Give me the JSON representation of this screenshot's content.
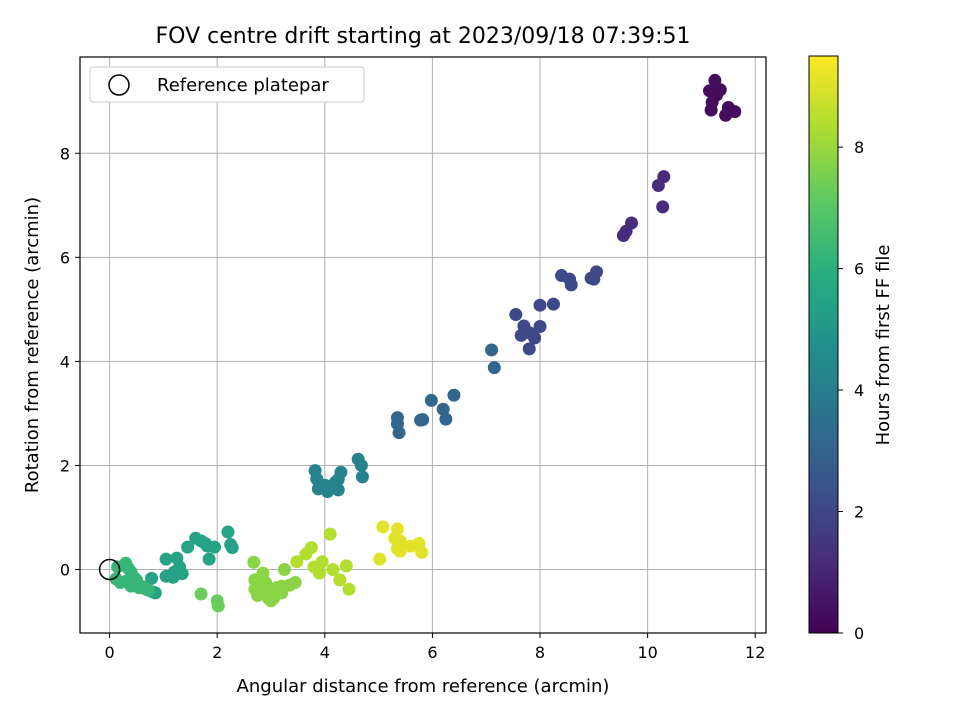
{
  "chart_data": {
    "type": "scatter",
    "title": "FOV centre drift starting at 2023/09/18 07:39:51",
    "xlabel": "Angular distance from reference (arcmin)",
    "ylabel": "Rotation from reference (arcmin)",
    "xlim": [
      -0.55,
      12.2
    ],
    "ylim": [
      -1.22,
      9.85
    ],
    "xticks": [
      0,
      2,
      4,
      6,
      8,
      10,
      12
    ],
    "yticks": [
      0,
      2,
      4,
      6,
      8
    ],
    "grid": true,
    "legend": {
      "placement": "upper-left",
      "entries": [
        "Reference platepar"
      ]
    },
    "reference_point": {
      "x": 0,
      "y": 0
    },
    "colorbar": {
      "label": "Hours from first FF file",
      "colormap": "viridis",
      "range": [
        0,
        9.5
      ],
      "ticks": [
        0,
        2,
        4,
        6,
        8
      ]
    },
    "series": [
      {
        "hours": 0.3,
        "points": [
          [
            11.25,
            9.4
          ],
          [
            11.15,
            9.2
          ],
          [
            11.35,
            9.22
          ],
          [
            11.2,
            8.98
          ],
          [
            11.18,
            8.83
          ],
          [
            11.5,
            8.88
          ],
          [
            11.45,
            8.73
          ],
          [
            11.62,
            8.8
          ],
          [
            11.28,
            9.12
          ]
        ]
      },
      {
        "hours": 1.2,
        "points": [
          [
            10.3,
            7.55
          ],
          [
            10.2,
            7.38
          ],
          [
            10.28,
            6.97
          ],
          [
            9.7,
            6.66
          ],
          [
            9.6,
            6.5
          ],
          [
            9.55,
            6.42
          ]
        ]
      },
      {
        "hours": 2.1,
        "points": [
          [
            9.05,
            5.72
          ],
          [
            8.95,
            5.6
          ],
          [
            9.0,
            5.58
          ],
          [
            8.4,
            5.65
          ],
          [
            8.55,
            5.58
          ],
          [
            8.58,
            5.47
          ],
          [
            8.25,
            5.1
          ],
          [
            8.0,
            5.08
          ],
          [
            7.55,
            4.9
          ],
          [
            7.7,
            4.68
          ],
          [
            7.65,
            4.5
          ],
          [
            7.8,
            4.55
          ],
          [
            8.0,
            4.67
          ],
          [
            7.9,
            4.45
          ],
          [
            7.8,
            4.24
          ]
        ]
      },
      {
        "hours": 3.1,
        "points": [
          [
            7.1,
            4.22
          ],
          [
            7.15,
            3.88
          ],
          [
            6.4,
            3.35
          ],
          [
            5.98,
            3.25
          ],
          [
            6.2,
            3.08
          ],
          [
            6.25,
            2.89
          ],
          [
            5.78,
            2.87
          ],
          [
            5.82,
            2.88
          ],
          [
            5.35,
            2.92
          ],
          [
            5.35,
            2.8
          ],
          [
            5.38,
            2.63
          ]
        ]
      },
      {
        "hours": 4.2,
        "points": [
          [
            4.62,
            2.12
          ],
          [
            4.68,
            2.0
          ],
          [
            4.7,
            1.78
          ],
          [
            4.3,
            1.87
          ],
          [
            3.82,
            1.9
          ],
          [
            3.85,
            1.74
          ],
          [
            4.0,
            1.62
          ],
          [
            4.2,
            1.68
          ],
          [
            4.25,
            1.73
          ],
          [
            3.88,
            1.55
          ],
          [
            4.05,
            1.5
          ],
          [
            4.25,
            1.53
          ],
          [
            4.15,
            1.62
          ]
        ]
      },
      {
        "hours": 5.5,
        "points": [
          [
            2.2,
            0.72
          ],
          [
            2.25,
            0.48
          ],
          [
            2.28,
            0.42
          ],
          [
            1.95,
            0.43
          ],
          [
            1.82,
            0.45
          ],
          [
            1.6,
            0.6
          ],
          [
            1.7,
            0.55
          ],
          [
            1.78,
            0.5
          ],
          [
            1.45,
            0.43
          ],
          [
            1.85,
            0.2
          ],
          [
            1.25,
            0.22
          ],
          [
            1.3,
            0.05
          ],
          [
            1.35,
            -0.08
          ],
          [
            1.2,
            -0.05
          ],
          [
            1.05,
            0.2
          ],
          [
            1.05,
            -0.13
          ],
          [
            1.18,
            -0.15
          ],
          [
            0.78,
            -0.17
          ],
          [
            0.8,
            -0.43
          ],
          [
            0.85,
            -0.45
          ]
        ]
      },
      {
        "hours": 6.3,
        "points": [
          [
            0.3,
            0.12
          ],
          [
            0.35,
            0.02
          ],
          [
            0.15,
            0.05
          ],
          [
            0.4,
            -0.05
          ],
          [
            0.45,
            -0.15
          ],
          [
            0.5,
            -0.2
          ],
          [
            0.12,
            -0.18
          ],
          [
            0.2,
            -0.25
          ],
          [
            0.3,
            -0.23
          ],
          [
            0.4,
            -0.32
          ],
          [
            0.55,
            -0.35
          ],
          [
            0.62,
            -0.33
          ],
          [
            0.68,
            -0.38
          ],
          [
            0.72,
            -0.4
          ]
        ]
      },
      {
        "hours": 7.3,
        "points": [
          [
            1.7,
            -0.47
          ],
          [
            2.0,
            -0.6
          ],
          [
            2.02,
            -0.7
          ]
        ]
      },
      {
        "hours": 7.8,
        "points": [
          [
            2.68,
            0.14
          ],
          [
            2.85,
            -0.07
          ],
          [
            2.7,
            -0.2
          ],
          [
            2.75,
            -0.3
          ],
          [
            2.9,
            -0.25
          ],
          [
            2.7,
            -0.38
          ],
          [
            2.8,
            -0.42
          ],
          [
            2.95,
            -0.55
          ],
          [
            3.05,
            -0.55
          ],
          [
            3.2,
            -0.45
          ],
          [
            3.1,
            -0.35
          ],
          [
            2.9,
            -0.45
          ],
          [
            3.05,
            -0.45
          ],
          [
            3.2,
            -0.32
          ],
          [
            3.25,
            0.0
          ],
          [
            3.35,
            -0.3
          ],
          [
            3.45,
            -0.25
          ],
          [
            3.0,
            -0.6
          ],
          [
            2.75,
            -0.5
          ]
        ]
      },
      {
        "hours": 8.4,
        "points": [
          [
            3.48,
            0.15
          ],
          [
            3.65,
            0.3
          ],
          [
            3.75,
            0.42
          ],
          [
            3.8,
            0.05
          ],
          [
            3.95,
            0.15
          ],
          [
            3.9,
            -0.07
          ],
          [
            4.1,
            0.68
          ],
          [
            4.15,
            0.0
          ],
          [
            4.28,
            -0.2
          ],
          [
            4.4,
            0.07
          ],
          [
            4.45,
            -0.38
          ]
        ]
      },
      {
        "hours": 9.1,
        "points": [
          [
            5.08,
            0.82
          ],
          [
            5.35,
            0.78
          ],
          [
            5.3,
            0.6
          ],
          [
            5.4,
            0.55
          ],
          [
            5.35,
            0.4
          ],
          [
            5.45,
            0.45
          ],
          [
            5.6,
            0.45
          ],
          [
            5.75,
            0.5
          ],
          [
            5.8,
            0.33
          ],
          [
            5.02,
            0.2
          ],
          [
            5.4,
            0.35
          ]
        ]
      }
    ]
  }
}
